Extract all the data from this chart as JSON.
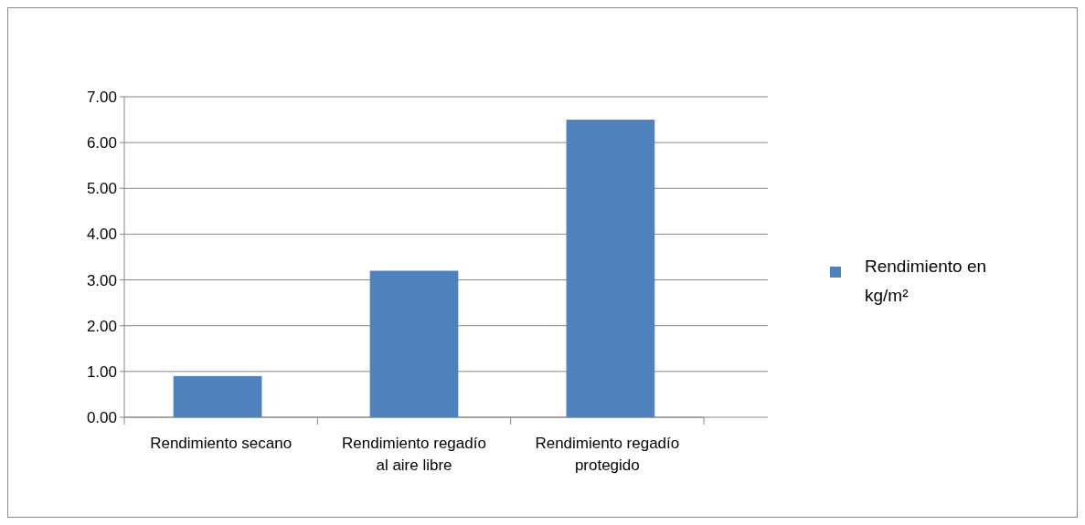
{
  "chart_data": {
    "type": "bar",
    "categories": [
      "Rendimiento secano",
      "Rendimiento regadío al aire libre",
      "Rendimiento regadío protegido"
    ],
    "series": [
      {
        "name": "Rendimiento en kg/m²",
        "color": "#4f81bd",
        "values": [
          0.9,
          3.2,
          6.5
        ]
      }
    ],
    "ylim": [
      0,
      7
    ],
    "yticks": [
      {
        "value": 0,
        "label": "0.00"
      },
      {
        "value": 1,
        "label": "1.00"
      },
      {
        "value": 2,
        "label": "2.00"
      },
      {
        "value": 3,
        "label": "3.00"
      },
      {
        "value": 4,
        "label": "4.00"
      },
      {
        "value": 5,
        "label": "5.00"
      },
      {
        "value": 6,
        "label": "6.00"
      },
      {
        "value": 7,
        "label": "7.00"
      }
    ],
    "grid": "y",
    "legend": "right"
  }
}
